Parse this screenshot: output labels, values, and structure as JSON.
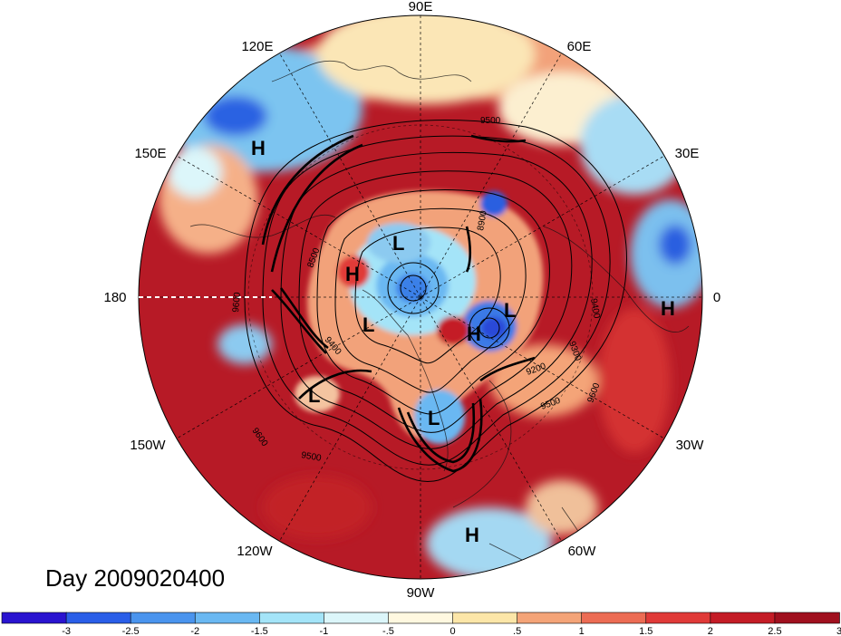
{
  "map": {
    "day_label": "Day 2009020400",
    "longitude_labels": [
      {
        "id": "90e",
        "text": "90E"
      },
      {
        "id": "60e",
        "text": "60E"
      },
      {
        "id": "120e",
        "text": "120E"
      },
      {
        "id": "150e",
        "text": "150E"
      },
      {
        "id": "30e",
        "text": "30E"
      },
      {
        "id": "180",
        "text": "180"
      },
      {
        "id": "0",
        "text": "0"
      },
      {
        "id": "150w",
        "text": "150W"
      },
      {
        "id": "30w",
        "text": "30W"
      },
      {
        "id": "120w",
        "text": "120W"
      },
      {
        "id": "60w",
        "text": "60W"
      },
      {
        "id": "90w",
        "text": "90W"
      }
    ],
    "pressure_centers": [
      {
        "id": "h-1",
        "type": "H"
      },
      {
        "id": "l-1",
        "type": "L"
      },
      {
        "id": "h-2",
        "type": "H"
      },
      {
        "id": "l-2",
        "type": "L"
      },
      {
        "id": "h-3",
        "type": "H"
      },
      {
        "id": "l-3",
        "type": "L"
      },
      {
        "id": "h-4",
        "type": "H"
      },
      {
        "id": "l-4",
        "type": "L"
      },
      {
        "id": "l-5",
        "type": "L"
      },
      {
        "id": "h-5",
        "type": "H"
      }
    ],
    "contour_labels": [
      {
        "id": "c-1",
        "text": "9500"
      },
      {
        "id": "c-2",
        "text": "8900"
      },
      {
        "id": "c-3",
        "text": "8500"
      },
      {
        "id": "c-4",
        "text": "9600"
      },
      {
        "id": "c-5",
        "text": "9400"
      },
      {
        "id": "c-6",
        "text": "9300"
      },
      {
        "id": "c-7",
        "text": "9200"
      },
      {
        "id": "c-8",
        "text": "9600"
      },
      {
        "id": "c-9",
        "text": "9500"
      },
      {
        "id": "c-10",
        "text": "9600"
      },
      {
        "id": "c-11",
        "text": "9500"
      },
      {
        "id": "c-12",
        "text": "9400"
      }
    ]
  },
  "colorbar": {
    "colors": [
      "#2a14d0",
      "#2a5ee8",
      "#4a94ee",
      "#6ab8f2",
      "#a4e4f8",
      "#dcf6fa",
      "#fff8e0",
      "#fce6a8",
      "#f4a478",
      "#ec6c54",
      "#e03a38",
      "#c41c26",
      "#a0101e"
    ],
    "tick_labels": [
      "-3",
      "-2.5",
      "-2",
      "-1.5",
      "-1",
      "-.5",
      "0",
      ".5",
      "1",
      "1.5",
      "2",
      "2.5",
      "3"
    ]
  }
}
